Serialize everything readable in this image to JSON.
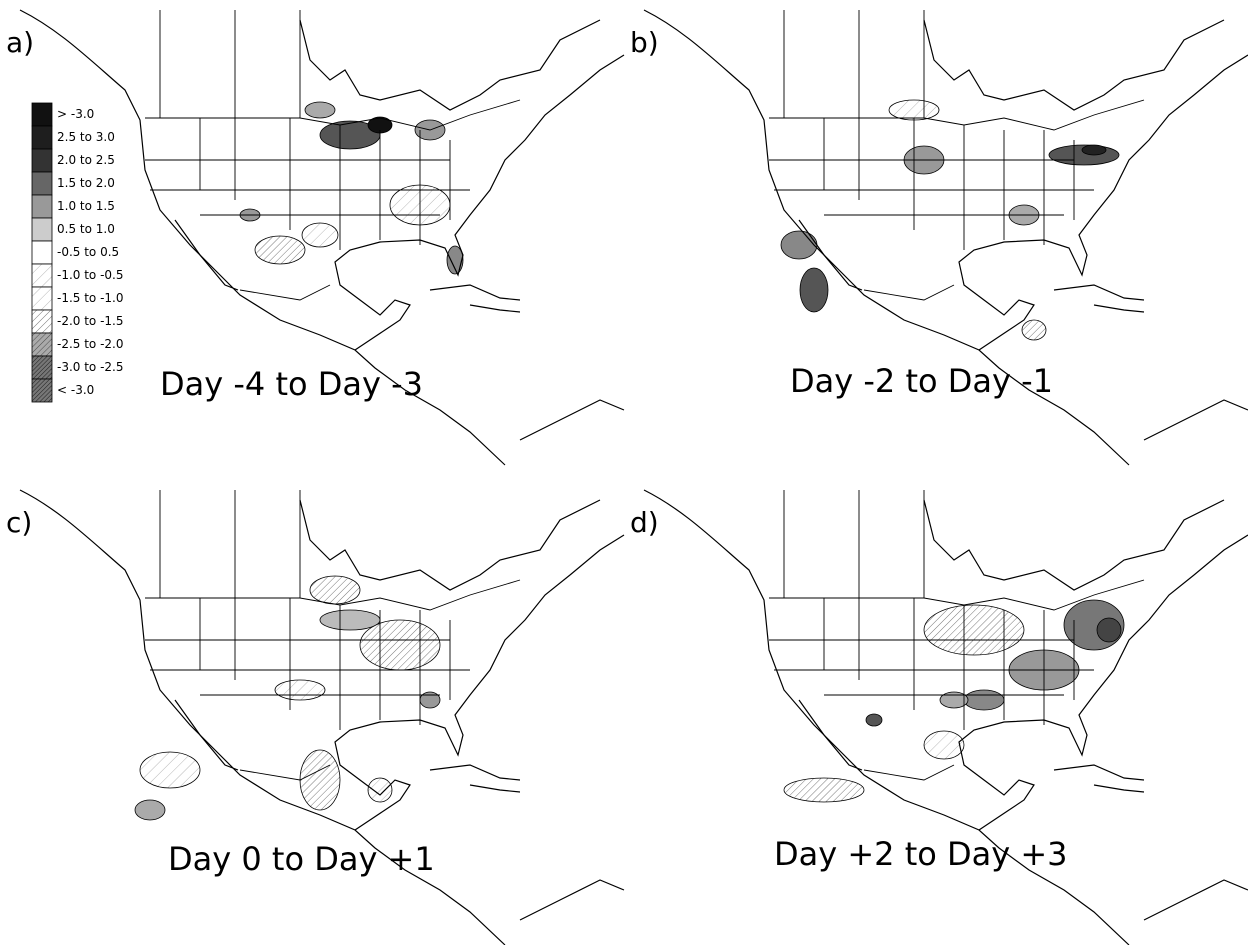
{
  "panels": [
    {
      "label": "a)",
      "title": "Day -4 to Day -3"
    },
    {
      "label": "b)",
      "title": "Day -2 to Day -1"
    },
    {
      "label": "c)",
      "title": "Day 0 to Day +1"
    },
    {
      "label": "d)",
      "title": "Day +2 to Day +3"
    }
  ],
  "legend": {
    "entries": [
      "> -3.0",
      "2.5 to 3.0",
      "2.0 to 2.5",
      "1.5 to 2.0",
      "1.0 to 1.5",
      "0.5 to 1.0",
      "-0.5 to 0.5",
      "-1.0 to -0.5",
      "-1.5 to -1.0",
      "-2.0 to -1.5",
      "-2.5 to -2.0",
      "-3.0 to -2.5",
      "< -3.0"
    ]
  }
}
